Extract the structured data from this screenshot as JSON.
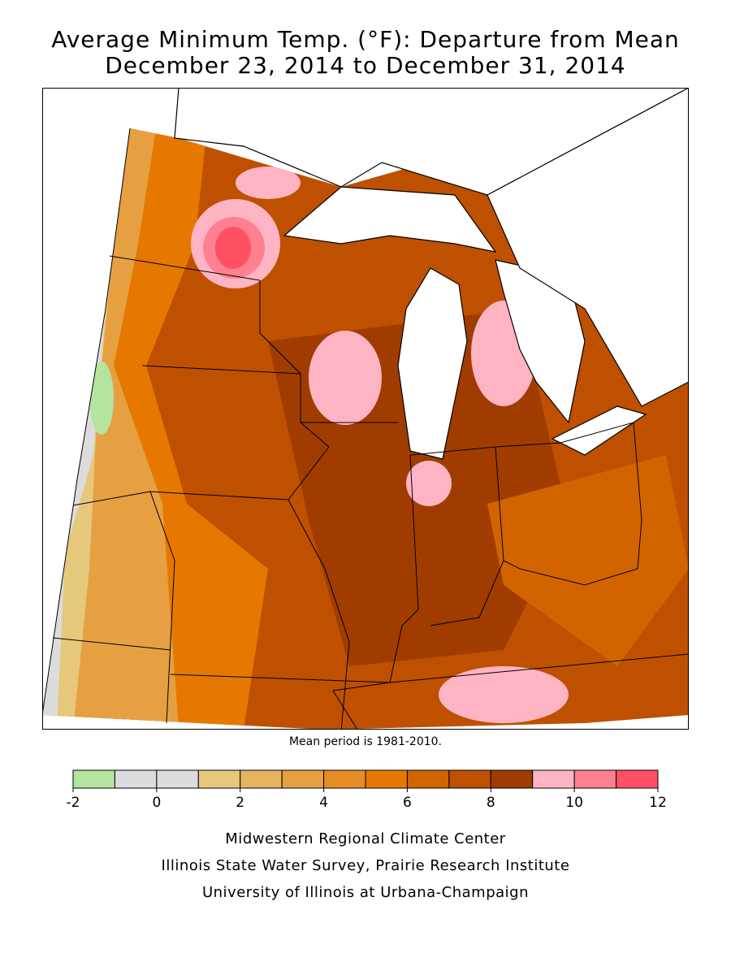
{
  "title": [
    "Average Minimum Temp. (°F): Departure from Mean",
    "December 23, 2014 to December 31, 2014"
  ],
  "note": "Mean period is 1981-2010.",
  "legend": {
    "bins": [
      -2,
      -1,
      0,
      1,
      2,
      3,
      4,
      5,
      6,
      7,
      8,
      9,
      10,
      11,
      12
    ],
    "colors": [
      "#b4e4a0",
      "#dcdcdc",
      "#dcdcdc",
      "#e6c87c",
      "#e6b45e",
      "#e6a042",
      "#e68c24",
      "#e67800",
      "#d26400",
      "#be5000",
      "#a03c00",
      "#ffb4c4",
      "#ff8090",
      "#ff5064"
    ],
    "ticks": [
      -2,
      0,
      2,
      4,
      6,
      8,
      10,
      12
    ]
  },
  "credits": [
    "Midwestern Regional Climate Center",
    "Illinois State Water Survey, Prairie Research Institute",
    "University of Illinois at Urbana-Champaign"
  ]
}
